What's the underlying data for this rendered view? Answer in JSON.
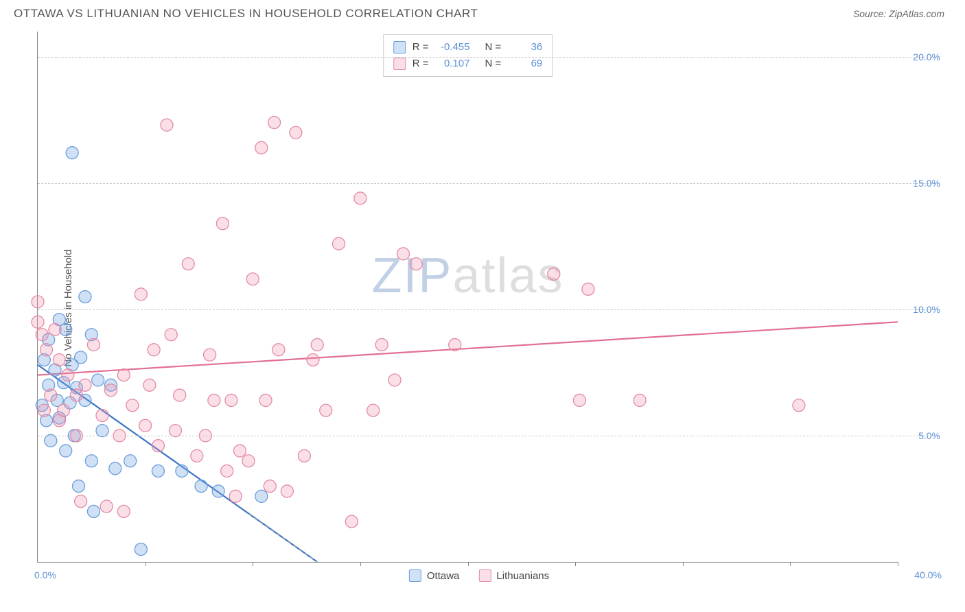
{
  "header": {
    "title": "OTTAWA VS LITHUANIAN NO VEHICLES IN HOUSEHOLD CORRELATION CHART",
    "source": "Source: ZipAtlas.com"
  },
  "ylabel": "No Vehicles in Household",
  "watermark": {
    "part1": "ZIP",
    "part2": "atlas"
  },
  "axes": {
    "xmin": 0,
    "xmax": 40,
    "ymin": 0,
    "ymax": 21,
    "x_min_label": "0.0%",
    "x_max_label": "40.0%",
    "yticks": [
      {
        "v": 5,
        "label": "5.0%"
      },
      {
        "v": 10,
        "label": "10.0%"
      },
      {
        "v": 15,
        "label": "15.0%"
      },
      {
        "v": 20,
        "label": "20.0%"
      }
    ],
    "xticks_minor": [
      5,
      10,
      15,
      20,
      25,
      30,
      35,
      40
    ],
    "grid_color": "#cccccc",
    "axis_color": "#888888",
    "tick_label_color": "#5b8fd6"
  },
  "series": [
    {
      "name": "Ottawa",
      "fill": "rgba(120,165,225,0.35)",
      "stroke": "#6a9edc",
      "line_color": "#3b74c4",
      "line_width": 2.2,
      "trend": {
        "x1": 0,
        "y1": 7.8,
        "x2": 13,
        "y2": 0
      },
      "trend_dash_after": {
        "x1": 9.8,
        "y1": 1.9,
        "x2": 13,
        "y2": 0
      },
      "R": "-0.455",
      "N": "36",
      "points": [
        [
          1.6,
          16.2
        ],
        [
          2.2,
          10.5
        ],
        [
          1.0,
          9.6
        ],
        [
          1.3,
          9.2
        ],
        [
          0.5,
          8.8
        ],
        [
          2.5,
          9.0
        ],
        [
          0.3,
          8.0
        ],
        [
          2.0,
          8.1
        ],
        [
          0.8,
          7.6
        ],
        [
          1.6,
          7.8
        ],
        [
          0.5,
          7.0
        ],
        [
          1.2,
          7.1
        ],
        [
          2.8,
          7.2
        ],
        [
          1.8,
          6.9
        ],
        [
          3.4,
          7.0
        ],
        [
          0.2,
          6.2
        ],
        [
          0.9,
          6.4
        ],
        [
          1.5,
          6.3
        ],
        [
          2.2,
          6.4
        ],
        [
          0.4,
          5.6
        ],
        [
          1.0,
          5.7
        ],
        [
          1.7,
          5.0
        ],
        [
          3.0,
          5.2
        ],
        [
          0.6,
          4.8
        ],
        [
          1.3,
          4.4
        ],
        [
          2.5,
          4.0
        ],
        [
          3.6,
          3.7
        ],
        [
          4.3,
          4.0
        ],
        [
          5.6,
          3.6
        ],
        [
          6.7,
          3.6
        ],
        [
          7.6,
          3.0
        ],
        [
          8.4,
          2.8
        ],
        [
          10.4,
          2.6
        ],
        [
          4.8,
          0.5
        ],
        [
          2.6,
          2.0
        ],
        [
          1.9,
          3.0
        ]
      ]
    },
    {
      "name": "Lithuanians",
      "fill": "rgba(240,150,175,0.30)",
      "stroke": "#e48aa4",
      "line_color": "#e26f93",
      "line_width": 2.2,
      "trend": {
        "x1": 0,
        "y1": 7.4,
        "x2": 40,
        "y2": 9.5
      },
      "R": "0.107",
      "N": "69",
      "points": [
        [
          0.0,
          10.3
        ],
        [
          0.0,
          9.5
        ],
        [
          0.2,
          9.0
        ],
        [
          0.4,
          8.4
        ],
        [
          0.8,
          9.2
        ],
        [
          1.0,
          8.0
        ],
        [
          1.4,
          7.4
        ],
        [
          1.8,
          6.6
        ],
        [
          2.2,
          7.0
        ],
        [
          2.6,
          8.6
        ],
        [
          3.0,
          5.8
        ],
        [
          1.0,
          5.6
        ],
        [
          1.8,
          5.0
        ],
        [
          3.4,
          6.8
        ],
        [
          4.0,
          7.4
        ],
        [
          4.4,
          6.2
        ],
        [
          4.8,
          10.6
        ],
        [
          5.2,
          7.0
        ],
        [
          5.6,
          4.6
        ],
        [
          6.0,
          17.3
        ],
        [
          6.6,
          6.6
        ],
        [
          7.0,
          11.8
        ],
        [
          7.4,
          4.2
        ],
        [
          8.0,
          8.2
        ],
        [
          8.2,
          6.4
        ],
        [
          8.6,
          13.4
        ],
        [
          9.0,
          6.4
        ],
        [
          9.4,
          4.4
        ],
        [
          9.8,
          4.0
        ],
        [
          10.0,
          11.2
        ],
        [
          10.4,
          16.4
        ],
        [
          10.6,
          6.4
        ],
        [
          11.0,
          17.4
        ],
        [
          11.2,
          8.4
        ],
        [
          11.6,
          2.8
        ],
        [
          12.0,
          17.0
        ],
        [
          12.4,
          4.2
        ],
        [
          13.0,
          8.6
        ],
        [
          13.4,
          6.0
        ],
        [
          14.0,
          12.6
        ],
        [
          14.6,
          1.6
        ],
        [
          15.0,
          14.4
        ],
        [
          15.6,
          6.0
        ],
        [
          16.0,
          8.6
        ],
        [
          16.6,
          7.2
        ],
        [
          17.0,
          12.2
        ],
        [
          17.6,
          11.8
        ],
        [
          19.4,
          8.6
        ],
        [
          24.0,
          11.4
        ],
        [
          25.2,
          6.4
        ],
        [
          25.6,
          10.8
        ],
        [
          28.0,
          6.4
        ],
        [
          35.4,
          6.2
        ],
        [
          2.0,
          2.4
        ],
        [
          3.2,
          2.2
        ],
        [
          4.0,
          2.0
        ],
        [
          0.3,
          6.0
        ],
        [
          0.6,
          6.6
        ],
        [
          1.2,
          6.0
        ],
        [
          3.8,
          5.0
        ],
        [
          5.0,
          5.4
        ],
        [
          6.4,
          5.2
        ],
        [
          7.8,
          5.0
        ],
        [
          8.8,
          3.6
        ],
        [
          9.2,
          2.6
        ],
        [
          10.8,
          3.0
        ],
        [
          5.4,
          8.4
        ],
        [
          6.2,
          9.0
        ],
        [
          12.8,
          8.0
        ]
      ]
    }
  ],
  "legend": {
    "series_label_1": "Ottawa",
    "series_label_2": "Lithuanians",
    "stat_R_label": "R =",
    "stat_N_label": "N ="
  },
  "style": {
    "background": "#ffffff",
    "marker_radius": 9,
    "marker_stroke_width": 1.3
  }
}
